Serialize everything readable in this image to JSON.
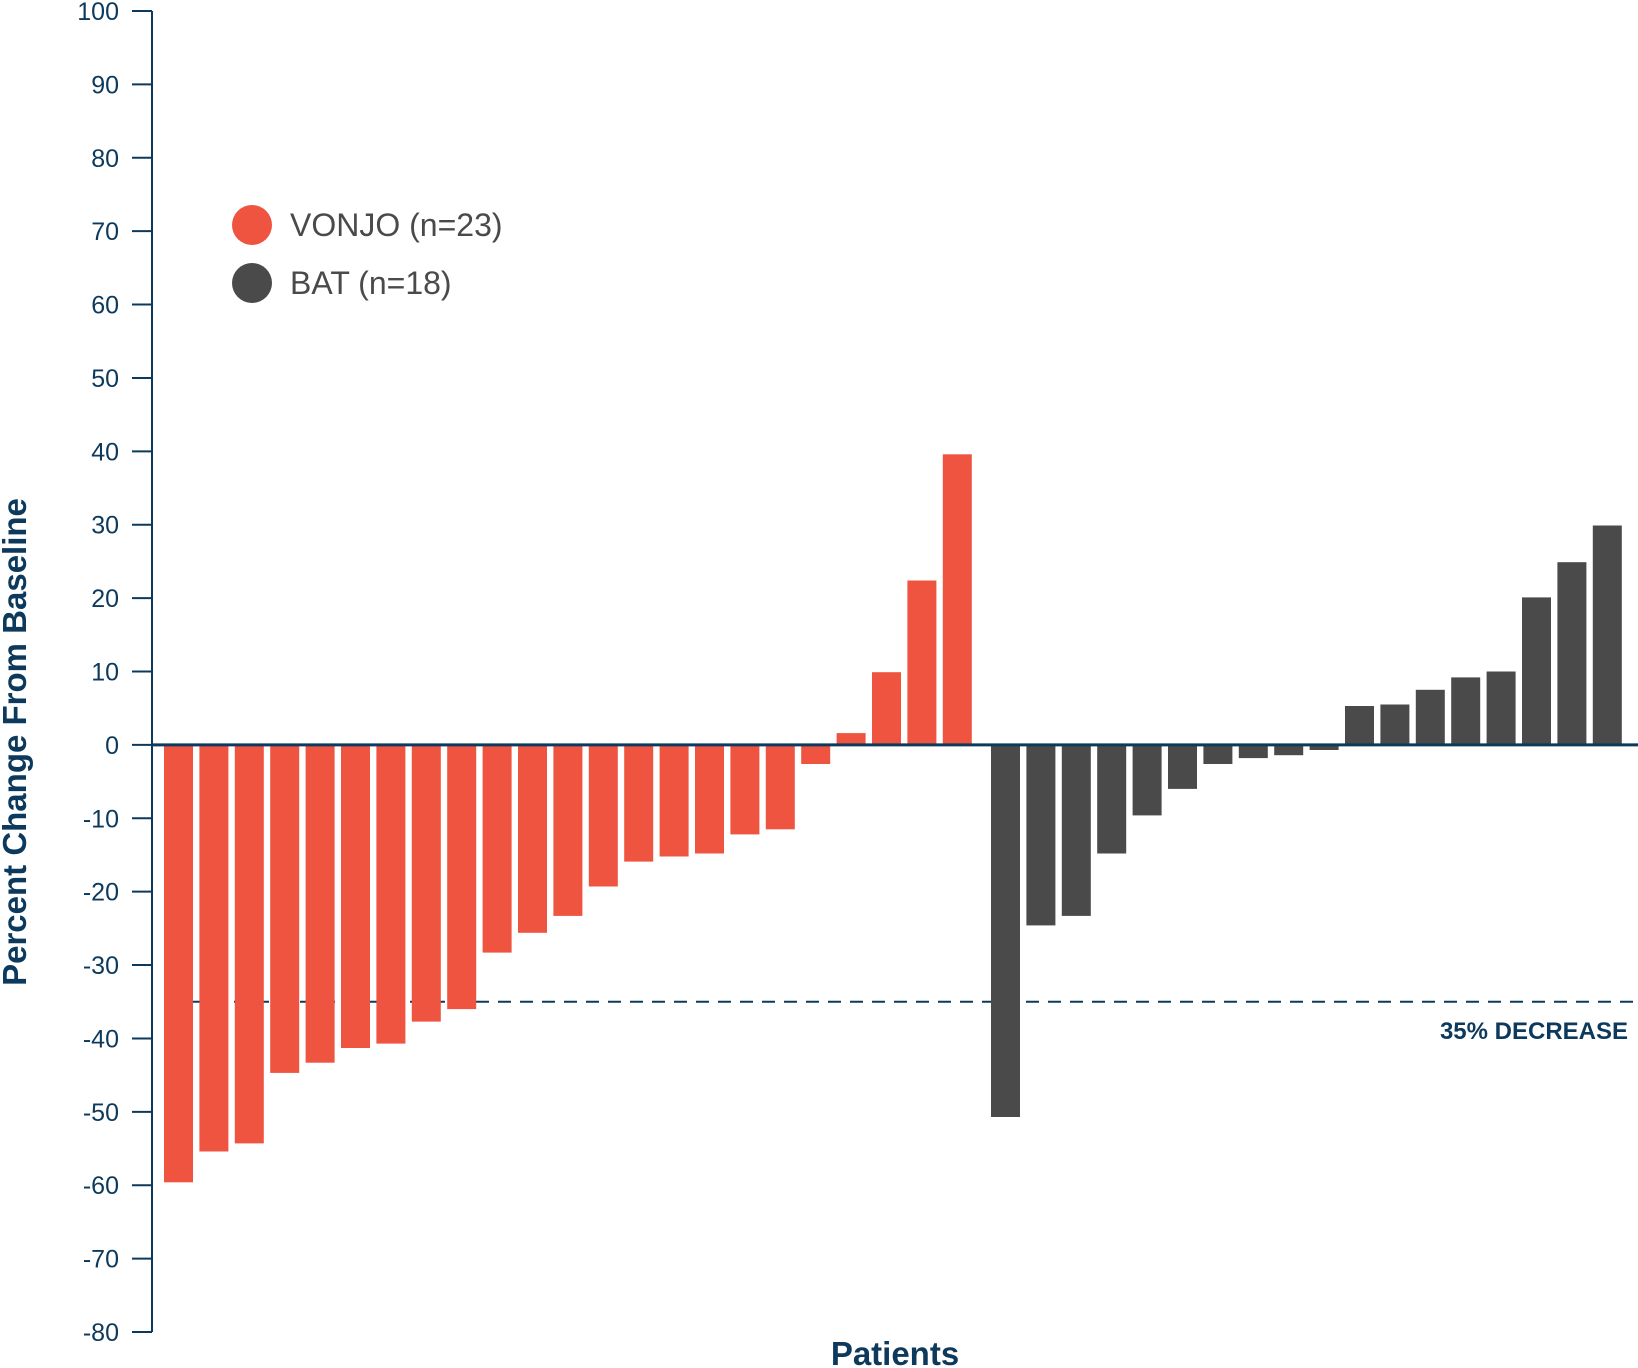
{
  "chart_data": {
    "type": "bar",
    "title": "",
    "xlabel": "Patients",
    "ylabel": "Percent Change From Baseline",
    "ylim": [
      -80,
      100
    ],
    "yticks": [
      100,
      90,
      80,
      70,
      60,
      50,
      40,
      30,
      20,
      10,
      0,
      -10,
      -20,
      -30,
      -40,
      -50,
      -60,
      -70,
      -80
    ],
    "grid": false,
    "legend_position": "top-left",
    "series": [
      {
        "name": "VONJO (n=23)",
        "color": "#ee5440",
        "values": [
          -59.6,
          -55.4,
          -54.3,
          -44.7,
          -43.3,
          -41.3,
          -40.7,
          -37.7,
          -36.0,
          -28.3,
          -25.6,
          -23.3,
          -19.3,
          -15.9,
          -15.2,
          -14.8,
          -12.2,
          -11.5,
          -2.6,
          1.6,
          9.9,
          22.4,
          39.6
        ]
      },
      {
        "name": "BAT (n=18)",
        "color": "#4a4a4a",
        "values": [
          -50.7,
          -24.6,
          -23.3,
          -14.8,
          -9.6,
          -6.0,
          -2.6,
          -1.8,
          -1.4,
          -0.7,
          5.3,
          5.5,
          7.5,
          9.2,
          10.0,
          20.1,
          24.9,
          29.9
        ]
      }
    ],
    "reference_line": {
      "value": -35,
      "label": "35% DECREASE",
      "color": "#0d3a5c"
    },
    "axis_color": "#0d3a5c"
  }
}
